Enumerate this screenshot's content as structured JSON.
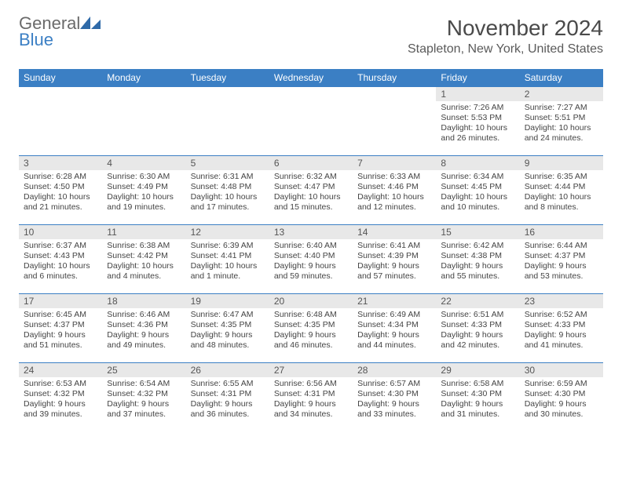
{
  "brand": {
    "text1": "General",
    "text2": "Blue"
  },
  "title": "November 2024",
  "location": "Stapleton, New York, United States",
  "colors": {
    "accent": "#3b7fc4",
    "header_bg": "#3b7fc4",
    "daynum_bg": "#e8e8e8",
    "text": "#333333",
    "border": "#3b7fc4"
  },
  "weekdays": [
    "Sunday",
    "Monday",
    "Tuesday",
    "Wednesday",
    "Thursday",
    "Friday",
    "Saturday"
  ],
  "cells": [
    {
      "n": "",
      "sr": "",
      "ss": "",
      "dl": ""
    },
    {
      "n": "",
      "sr": "",
      "ss": "",
      "dl": ""
    },
    {
      "n": "",
      "sr": "",
      "ss": "",
      "dl": ""
    },
    {
      "n": "",
      "sr": "",
      "ss": "",
      "dl": ""
    },
    {
      "n": "",
      "sr": "",
      "ss": "",
      "dl": ""
    },
    {
      "n": "1",
      "sr": "Sunrise: 7:26 AM",
      "ss": "Sunset: 5:53 PM",
      "dl": "Daylight: 10 hours and 26 minutes."
    },
    {
      "n": "2",
      "sr": "Sunrise: 7:27 AM",
      "ss": "Sunset: 5:51 PM",
      "dl": "Daylight: 10 hours and 24 minutes."
    },
    {
      "n": "3",
      "sr": "Sunrise: 6:28 AM",
      "ss": "Sunset: 4:50 PM",
      "dl": "Daylight: 10 hours and 21 minutes."
    },
    {
      "n": "4",
      "sr": "Sunrise: 6:30 AM",
      "ss": "Sunset: 4:49 PM",
      "dl": "Daylight: 10 hours and 19 minutes."
    },
    {
      "n": "5",
      "sr": "Sunrise: 6:31 AM",
      "ss": "Sunset: 4:48 PM",
      "dl": "Daylight: 10 hours and 17 minutes."
    },
    {
      "n": "6",
      "sr": "Sunrise: 6:32 AM",
      "ss": "Sunset: 4:47 PM",
      "dl": "Daylight: 10 hours and 15 minutes."
    },
    {
      "n": "7",
      "sr": "Sunrise: 6:33 AM",
      "ss": "Sunset: 4:46 PM",
      "dl": "Daylight: 10 hours and 12 minutes."
    },
    {
      "n": "8",
      "sr": "Sunrise: 6:34 AM",
      "ss": "Sunset: 4:45 PM",
      "dl": "Daylight: 10 hours and 10 minutes."
    },
    {
      "n": "9",
      "sr": "Sunrise: 6:35 AM",
      "ss": "Sunset: 4:44 PM",
      "dl": "Daylight: 10 hours and 8 minutes."
    },
    {
      "n": "10",
      "sr": "Sunrise: 6:37 AM",
      "ss": "Sunset: 4:43 PM",
      "dl": "Daylight: 10 hours and 6 minutes."
    },
    {
      "n": "11",
      "sr": "Sunrise: 6:38 AM",
      "ss": "Sunset: 4:42 PM",
      "dl": "Daylight: 10 hours and 4 minutes."
    },
    {
      "n": "12",
      "sr": "Sunrise: 6:39 AM",
      "ss": "Sunset: 4:41 PM",
      "dl": "Daylight: 10 hours and 1 minute."
    },
    {
      "n": "13",
      "sr": "Sunrise: 6:40 AM",
      "ss": "Sunset: 4:40 PM",
      "dl": "Daylight: 9 hours and 59 minutes."
    },
    {
      "n": "14",
      "sr": "Sunrise: 6:41 AM",
      "ss": "Sunset: 4:39 PM",
      "dl": "Daylight: 9 hours and 57 minutes."
    },
    {
      "n": "15",
      "sr": "Sunrise: 6:42 AM",
      "ss": "Sunset: 4:38 PM",
      "dl": "Daylight: 9 hours and 55 minutes."
    },
    {
      "n": "16",
      "sr": "Sunrise: 6:44 AM",
      "ss": "Sunset: 4:37 PM",
      "dl": "Daylight: 9 hours and 53 minutes."
    },
    {
      "n": "17",
      "sr": "Sunrise: 6:45 AM",
      "ss": "Sunset: 4:37 PM",
      "dl": "Daylight: 9 hours and 51 minutes."
    },
    {
      "n": "18",
      "sr": "Sunrise: 6:46 AM",
      "ss": "Sunset: 4:36 PM",
      "dl": "Daylight: 9 hours and 49 minutes."
    },
    {
      "n": "19",
      "sr": "Sunrise: 6:47 AM",
      "ss": "Sunset: 4:35 PM",
      "dl": "Daylight: 9 hours and 48 minutes."
    },
    {
      "n": "20",
      "sr": "Sunrise: 6:48 AM",
      "ss": "Sunset: 4:35 PM",
      "dl": "Daylight: 9 hours and 46 minutes."
    },
    {
      "n": "21",
      "sr": "Sunrise: 6:49 AM",
      "ss": "Sunset: 4:34 PM",
      "dl": "Daylight: 9 hours and 44 minutes."
    },
    {
      "n": "22",
      "sr": "Sunrise: 6:51 AM",
      "ss": "Sunset: 4:33 PM",
      "dl": "Daylight: 9 hours and 42 minutes."
    },
    {
      "n": "23",
      "sr": "Sunrise: 6:52 AM",
      "ss": "Sunset: 4:33 PM",
      "dl": "Daylight: 9 hours and 41 minutes."
    },
    {
      "n": "24",
      "sr": "Sunrise: 6:53 AM",
      "ss": "Sunset: 4:32 PM",
      "dl": "Daylight: 9 hours and 39 minutes."
    },
    {
      "n": "25",
      "sr": "Sunrise: 6:54 AM",
      "ss": "Sunset: 4:32 PM",
      "dl": "Daylight: 9 hours and 37 minutes."
    },
    {
      "n": "26",
      "sr": "Sunrise: 6:55 AM",
      "ss": "Sunset: 4:31 PM",
      "dl": "Daylight: 9 hours and 36 minutes."
    },
    {
      "n": "27",
      "sr": "Sunrise: 6:56 AM",
      "ss": "Sunset: 4:31 PM",
      "dl": "Daylight: 9 hours and 34 minutes."
    },
    {
      "n": "28",
      "sr": "Sunrise: 6:57 AM",
      "ss": "Sunset: 4:30 PM",
      "dl": "Daylight: 9 hours and 33 minutes."
    },
    {
      "n": "29",
      "sr": "Sunrise: 6:58 AM",
      "ss": "Sunset: 4:30 PM",
      "dl": "Daylight: 9 hours and 31 minutes."
    },
    {
      "n": "30",
      "sr": "Sunrise: 6:59 AM",
      "ss": "Sunset: 4:30 PM",
      "dl": "Daylight: 9 hours and 30 minutes."
    }
  ]
}
